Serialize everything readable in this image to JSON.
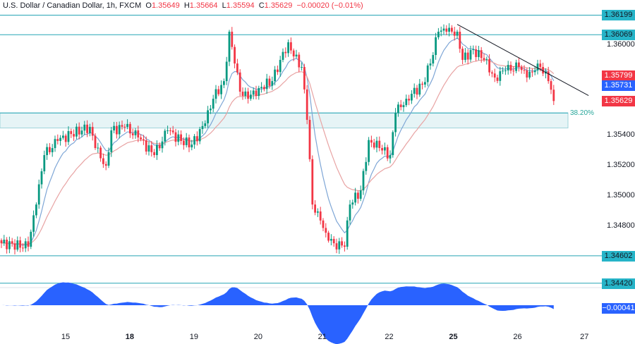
{
  "header": {
    "symbol": "U.S. Dollar / Canadian Dollar, 1h, FXCM",
    "o_label": "O",
    "open": "1.35649",
    "h_label": "H",
    "high": "1.35664",
    "l_label": "L",
    "low": "1.35594",
    "c_label": "C",
    "close": "1.35629",
    "change": "−0.00020 (−0.01%)"
  },
  "colors": {
    "up": "#089981",
    "down": "#f23645",
    "level": "#26a5b5",
    "fast_ma": "#7ea6d6",
    "slow_ma": "#e8a3a3",
    "osc": "#2962ff"
  },
  "chart_data": {
    "type": "candlestick",
    "title": "USD/CAD 1h",
    "ylim": [
      1.3418,
      1.3628
    ],
    "price_ticks": [
      "1.36000",
      "1.35400",
      "1.35200",
      "1.35000",
      "1.34800"
    ],
    "date_ticks": [
      {
        "label": "15",
        "hour": 24,
        "bold": false
      },
      {
        "label": "18",
        "hour": 48,
        "bold": true
      },
      {
        "label": "19",
        "hour": 72,
        "bold": false
      },
      {
        "label": "20",
        "hour": 96,
        "bold": false
      },
      {
        "label": "21",
        "hour": 120,
        "bold": false
      },
      {
        "label": "22",
        "hour": 145,
        "bold": false
      },
      {
        "label": "25",
        "hour": 169,
        "bold": true
      },
      {
        "label": "26",
        "hour": 193,
        "bold": false
      },
      {
        "label": "27",
        "hour": 218,
        "bold": false
      }
    ],
    "close_anchors": [
      [
        0,
        1.34685
      ],
      [
        10,
        1.34662
      ],
      [
        13,
        1.34942
      ],
      [
        16,
        1.3527
      ],
      [
        21,
        1.35364
      ],
      [
        26,
        1.3541
      ],
      [
        33,
        1.35457
      ],
      [
        35,
        1.35317
      ],
      [
        39,
        1.352
      ],
      [
        41,
        1.35434
      ],
      [
        46,
        1.35457
      ],
      [
        51,
        1.35387
      ],
      [
        57,
        1.3527
      ],
      [
        62,
        1.35434
      ],
      [
        67,
        1.35364
      ],
      [
        71,
        1.3534
      ],
      [
        76,
        1.35481
      ],
      [
        79,
        1.35644
      ],
      [
        83,
        1.35761
      ],
      [
        85,
        1.36089
      ],
      [
        87,
        1.35878
      ],
      [
        89,
        1.35691
      ],
      [
        92,
        1.35644
      ],
      [
        96,
        1.35715
      ],
      [
        101,
        1.35761
      ],
      [
        104,
        1.35902
      ],
      [
        107,
        1.36019
      ],
      [
        109,
        1.35925
      ],
      [
        112,
        1.35855
      ],
      [
        114,
        1.35504
      ],
      [
        116,
        1.34942
      ],
      [
        118,
        1.34896
      ],
      [
        121,
        1.34755
      ],
      [
        124,
        1.34685
      ],
      [
        128,
        1.34662
      ],
      [
        130,
        1.34942
      ],
      [
        134,
        1.35036
      ],
      [
        137,
        1.3537
      ],
      [
        141,
        1.35317
      ],
      [
        145,
        1.3527
      ],
      [
        147,
        1.35551
      ],
      [
        151,
        1.35644
      ],
      [
        157,
        1.35738
      ],
      [
        160,
        1.35878
      ],
      [
        163,
        1.36089
      ],
      [
        166,
        1.36089
      ],
      [
        170,
        1.36089
      ],
      [
        172,
        1.35902
      ],
      [
        176,
        1.35972
      ],
      [
        180,
        1.35902
      ],
      [
        184,
        1.35785
      ],
      [
        188,
        1.35832
      ],
      [
        193,
        1.35855
      ],
      [
        196,
        1.35785
      ],
      [
        199,
        1.35832
      ],
      [
        201,
        1.35855
      ],
      [
        204,
        1.35761
      ],
      [
        206,
        1.35629
      ]
    ],
    "levels": [
      {
        "price": 1.36199,
        "label": "1.36199"
      },
      {
        "price": 1.36069,
        "label": "1.36069"
      },
      {
        "price": 1.34602,
        "label": "1.34602"
      },
      {
        "price": 1.3442,
        "label": "1.34420"
      }
    ],
    "fib_zone": {
      "top": 1.3555,
      "bottom": 1.3545,
      "label": "38.20%"
    },
    "trendline": [
      [
        170,
        1.36138
      ],
      [
        219,
        1.35665
      ]
    ],
    "price_tags": [
      {
        "label": "1.35799",
        "price": 1.35799,
        "color": "#f23645"
      },
      {
        "label": "1.35731",
        "price": 1.35731,
        "color": "#2962ff"
      },
      {
        "label": "1.35629",
        "price": 1.35629,
        "color": "#f23645"
      }
    ],
    "oscillator": {
      "last_label": "−0.00041"
    }
  }
}
